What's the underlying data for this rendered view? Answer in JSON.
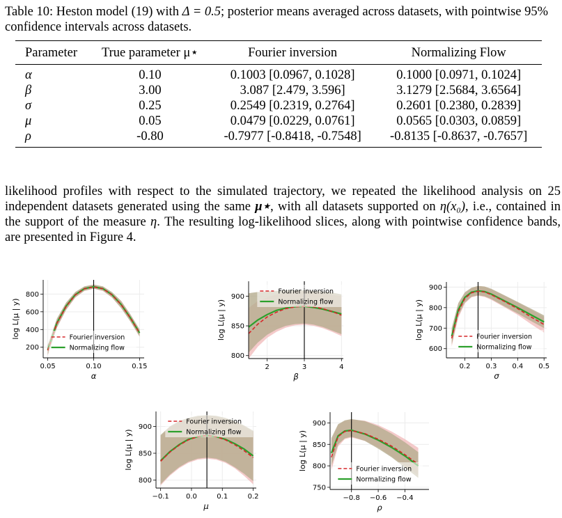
{
  "caption": {
    "prefix": "Table 10: Heston model (19) with ",
    "delta": "Δ = 0.5",
    "suffix": "; posterior means averaged across datasets, with pointwise 95% confidence intervals across datasets."
  },
  "table": {
    "headers": [
      "Parameter",
      "True parameter μ⋆",
      "Fourier inversion",
      "Normalizing Flow"
    ],
    "rows": [
      {
        "param": "α",
        "true": "0.10",
        "fourier": "0.1003 [0.0967, 0.1028]",
        "flow": "0.1000 [0.0971, 0.1024]"
      },
      {
        "param": "β",
        "true": "3.00",
        "fourier": "3.087 [2.479, 3.596]",
        "flow": "3.1279 [2.5684, 3.6564]"
      },
      {
        "param": "σ",
        "true": "0.25",
        "fourier": "0.2549 [0.2319, 0.2764]",
        "flow": "0.2601 [0.2380, 0.2839]"
      },
      {
        "param": "μ",
        "true": "0.05",
        "fourier": "0.0479 [0.0229, 0.0761]",
        "flow": "0.0565 [0.0303, 0.0859]"
      },
      {
        "param": "ρ",
        "true": "-0.80",
        "fourier": "-0.7977 [-0.8418, -0.7548]",
        "flow": "-0.8135 [-0.8637, -0.7657]"
      }
    ]
  },
  "paragraph": {
    "part1": "likelihood profiles with respect to the simulated trajectory, we repeated the likelihood analysis on 25 independent datasets generated using the same ",
    "mu": "μ⋆",
    "part2": ", with all datasets supported on ",
    "support": "η(x₀)",
    "part3": ", i.e., contained in the support of the measure ",
    "eta": "η",
    "part4": ". The resulting log-likelihood slices, along with pointwise confidence bands, are presented in Figure 4."
  },
  "colors": {
    "fourier": "#d62728",
    "flow": "#2ca02c",
    "fourier_band": "#f0b8b8",
    "flow_band": "#a8d8a8",
    "overlap": "#b5ad8e",
    "true_line": "#000000"
  },
  "legend": {
    "fourier": "Fourier inversion",
    "flow": "Normalizing flow"
  },
  "chart_data": [
    {
      "type": "line",
      "param": "alpha",
      "xlabel": "α",
      "ylabel": "log L(μ | y)",
      "xlim": [
        0.045,
        0.155
      ],
      "ylim": [
        80,
        960
      ],
      "xticks": [
        0.05,
        0.1,
        0.15
      ],
      "xticklabels": [
        "0.05",
        "0.10",
        "0.15"
      ],
      "yticks": [
        200,
        400,
        600,
        800
      ],
      "yticklabels": [
        "200",
        "400",
        "600",
        "800"
      ],
      "true_value": 0.1,
      "legend_loc": "lower center",
      "x": [
        0.05,
        0.06,
        0.07,
        0.08,
        0.09,
        0.1,
        0.11,
        0.12,
        0.13,
        0.14,
        0.15
      ],
      "series": [
        {
          "name": "Fourier inversion",
          "values": [
            165,
            470,
            660,
            790,
            860,
            880,
            860,
            790,
            680,
            530,
            360
          ]
        },
        {
          "name": "Normalizing flow",
          "values": [
            170,
            475,
            665,
            793,
            862,
            882,
            862,
            792,
            682,
            532,
            362
          ]
        }
      ],
      "bands": [
        {
          "lower": [
            110,
            420,
            620,
            760,
            835,
            860,
            835,
            760,
            640,
            490,
            320
          ],
          "upper": [
            220,
            520,
            700,
            820,
            885,
            905,
            885,
            820,
            720,
            570,
            400
          ]
        },
        {
          "lower": [
            115,
            425,
            625,
            763,
            838,
            862,
            838,
            762,
            642,
            492,
            322
          ],
          "upper": [
            225,
            525,
            705,
            823,
            887,
            907,
            887,
            822,
            722,
            572,
            402
          ]
        }
      ]
    },
    {
      "type": "line",
      "param": "beta",
      "xlabel": "β",
      "ylabel": "log L(μ | y)",
      "xlim": [
        1.5,
        4.05
      ],
      "ylim": [
        795,
        925
      ],
      "xticks": [
        2,
        3,
        4
      ],
      "xticklabels": [
        "2",
        "3",
        "4"
      ],
      "yticks": [
        800,
        850,
        900
      ],
      "yticklabels": [
        "800",
        "850",
        "900"
      ],
      "true_value": 3.0,
      "legend_loc": "upper center",
      "x": [
        1.5,
        1.75,
        2.0,
        2.25,
        2.5,
        2.75,
        3.0,
        3.25,
        3.5,
        3.75,
        4.0
      ],
      "series": [
        {
          "name": "Fourier inversion",
          "values": [
            837,
            853,
            865,
            873,
            879,
            882,
            883,
            882,
            879,
            874,
            868
          ]
        },
        {
          "name": "Normalizing flow",
          "values": [
            848,
            860,
            869,
            876,
            880,
            882,
            883,
            881,
            878,
            874,
            870
          ]
        }
      ],
      "bands": [
        {
          "lower": [
            795,
            815,
            830,
            840,
            847,
            851,
            852,
            850,
            846,
            840,
            833
          ],
          "upper": [
            880,
            892,
            898,
            903,
            906,
            908,
            908,
            907,
            905,
            902,
            900
          ]
        },
        {
          "lower": [
            805,
            822,
            835,
            844,
            850,
            853,
            854,
            852,
            848,
            842,
            836
          ],
          "upper": [
            905,
            907,
            908,
            909,
            910,
            910,
            910,
            909,
            908,
            906,
            903
          ]
        }
      ]
    },
    {
      "type": "line",
      "param": "sigma",
      "xlabel": "σ",
      "ylabel": "log L(μ | y)",
      "xlim": [
        0.13,
        0.51
      ],
      "ylim": [
        555,
        925
      ],
      "xticks": [
        0.2,
        0.3,
        0.4,
        0.5
      ],
      "xticklabels": [
        "0.2",
        "0.3",
        "0.4",
        "0.5"
      ],
      "yticks": [
        600,
        700,
        800,
        900
      ],
      "yticklabels": [
        "600",
        "700",
        "800",
        "900"
      ],
      "true_value": 0.25,
      "legend_loc": "lower right",
      "x": [
        0.15,
        0.175,
        0.2,
        0.225,
        0.25,
        0.275,
        0.3,
        0.35,
        0.4,
        0.45,
        0.5
      ],
      "series": [
        {
          "name": "Fourier inversion",
          "values": [
            650,
            780,
            845,
            872,
            880,
            876,
            863,
            830,
            795,
            755,
            718
          ]
        },
        {
          "name": "Normalizing flow",
          "values": [
            660,
            790,
            850,
            875,
            882,
            878,
            866,
            833,
            800,
            765,
            730
          ]
        }
      ],
      "bands": [
        {
          "lower": [
            610,
            750,
            820,
            850,
            858,
            852,
            838,
            802,
            765,
            720,
            678
          ],
          "upper": [
            690,
            815,
            870,
            895,
            905,
            902,
            890,
            858,
            825,
            790,
            755
          ]
        },
        {
          "lower": [
            620,
            760,
            825,
            853,
            860,
            855,
            842,
            806,
            772,
            735,
            700
          ],
          "upper": [
            700,
            822,
            875,
            897,
            906,
            903,
            892,
            860,
            828,
            795,
            762
          ]
        }
      ]
    },
    {
      "type": "line",
      "param": "mu",
      "xlabel": "μ",
      "ylabel": "log L(μ | y)",
      "xlim": [
        -0.115,
        0.21
      ],
      "ylim": [
        785,
        928
      ],
      "xticks": [
        -0.1,
        0.0,
        0.1,
        0.2
      ],
      "xticklabels": [
        "−0.1",
        "0.0",
        "0.1",
        "0.2"
      ],
      "yticks": [
        800,
        850,
        900
      ],
      "yticklabels": [
        "800",
        "850",
        "900"
      ],
      "true_value": 0.05,
      "legend_loc": "upper center",
      "x": [
        -0.1,
        -0.07,
        -0.04,
        -0.01,
        0.02,
        0.05,
        0.08,
        0.11,
        0.14,
        0.17,
        0.2
      ],
      "series": [
        {
          "name": "Fourier inversion",
          "values": [
            835,
            852,
            865,
            875,
            881,
            883,
            881,
            875,
            866,
            855,
            842
          ]
        },
        {
          "name": "Normalizing flow",
          "values": [
            836,
            853,
            866,
            876,
            881,
            883,
            881,
            876,
            868,
            858,
            845
          ]
        }
      ],
      "bands": [
        {
          "lower": [
            790,
            808,
            822,
            832,
            838,
            840,
            838,
            832,
            822,
            808,
            792
          ],
          "upper": [
            882,
            898,
            908,
            914,
            918,
            919,
            918,
            914,
            908,
            900,
            890
          ]
        },
        {
          "lower": [
            792,
            810,
            824,
            834,
            840,
            842,
            840,
            834,
            824,
            812,
            798
          ],
          "upper": [
            884,
            900,
            910,
            916,
            920,
            921,
            920,
            916,
            910,
            902,
            892
          ]
        }
      ]
    },
    {
      "type": "line",
      "param": "rho",
      "xlabel": "ρ",
      "ylabel": "log L(μ | y)",
      "xlim": [
        -0.96,
        -0.22
      ],
      "ylim": [
        745,
        925
      ],
      "xticks": [
        -0.8,
        -0.6,
        -0.4
      ],
      "xticklabels": [
        "−0.8",
        "−0.6",
        "−0.4"
      ],
      "yticks": [
        750,
        800,
        850,
        900
      ],
      "yticklabels": [
        "750",
        "800",
        "850",
        "900"
      ],
      "true_value": -0.8,
      "legend_loc": "lower center",
      "x": [
        -0.95,
        -0.9,
        -0.85,
        -0.8,
        -0.7,
        -0.6,
        -0.5,
        -0.4,
        -0.3
      ],
      "series": [
        {
          "name": "Fourier inversion",
          "values": [
            820,
            868,
            880,
            882,
            875,
            862,
            846,
            826,
            804
          ]
        },
        {
          "name": "Normalizing flow",
          "values": [
            830,
            870,
            881,
            883,
            874,
            860,
            843,
            823,
            800
          ]
        }
      ],
      "bands": [
        {
          "lower": [
            790,
            845,
            862,
            866,
            858,
            843,
            822,
            800,
            778
          ],
          "upper": [
            860,
            895,
            905,
            908,
            905,
            895,
            880,
            862,
            842
          ]
        },
        {
          "lower": [
            800,
            850,
            864,
            868,
            858,
            840,
            820,
            796,
            772
          ],
          "upper": [
            865,
            897,
            906,
            909,
            904,
            892,
            875,
            855,
            832
          ]
        }
      ]
    }
  ]
}
